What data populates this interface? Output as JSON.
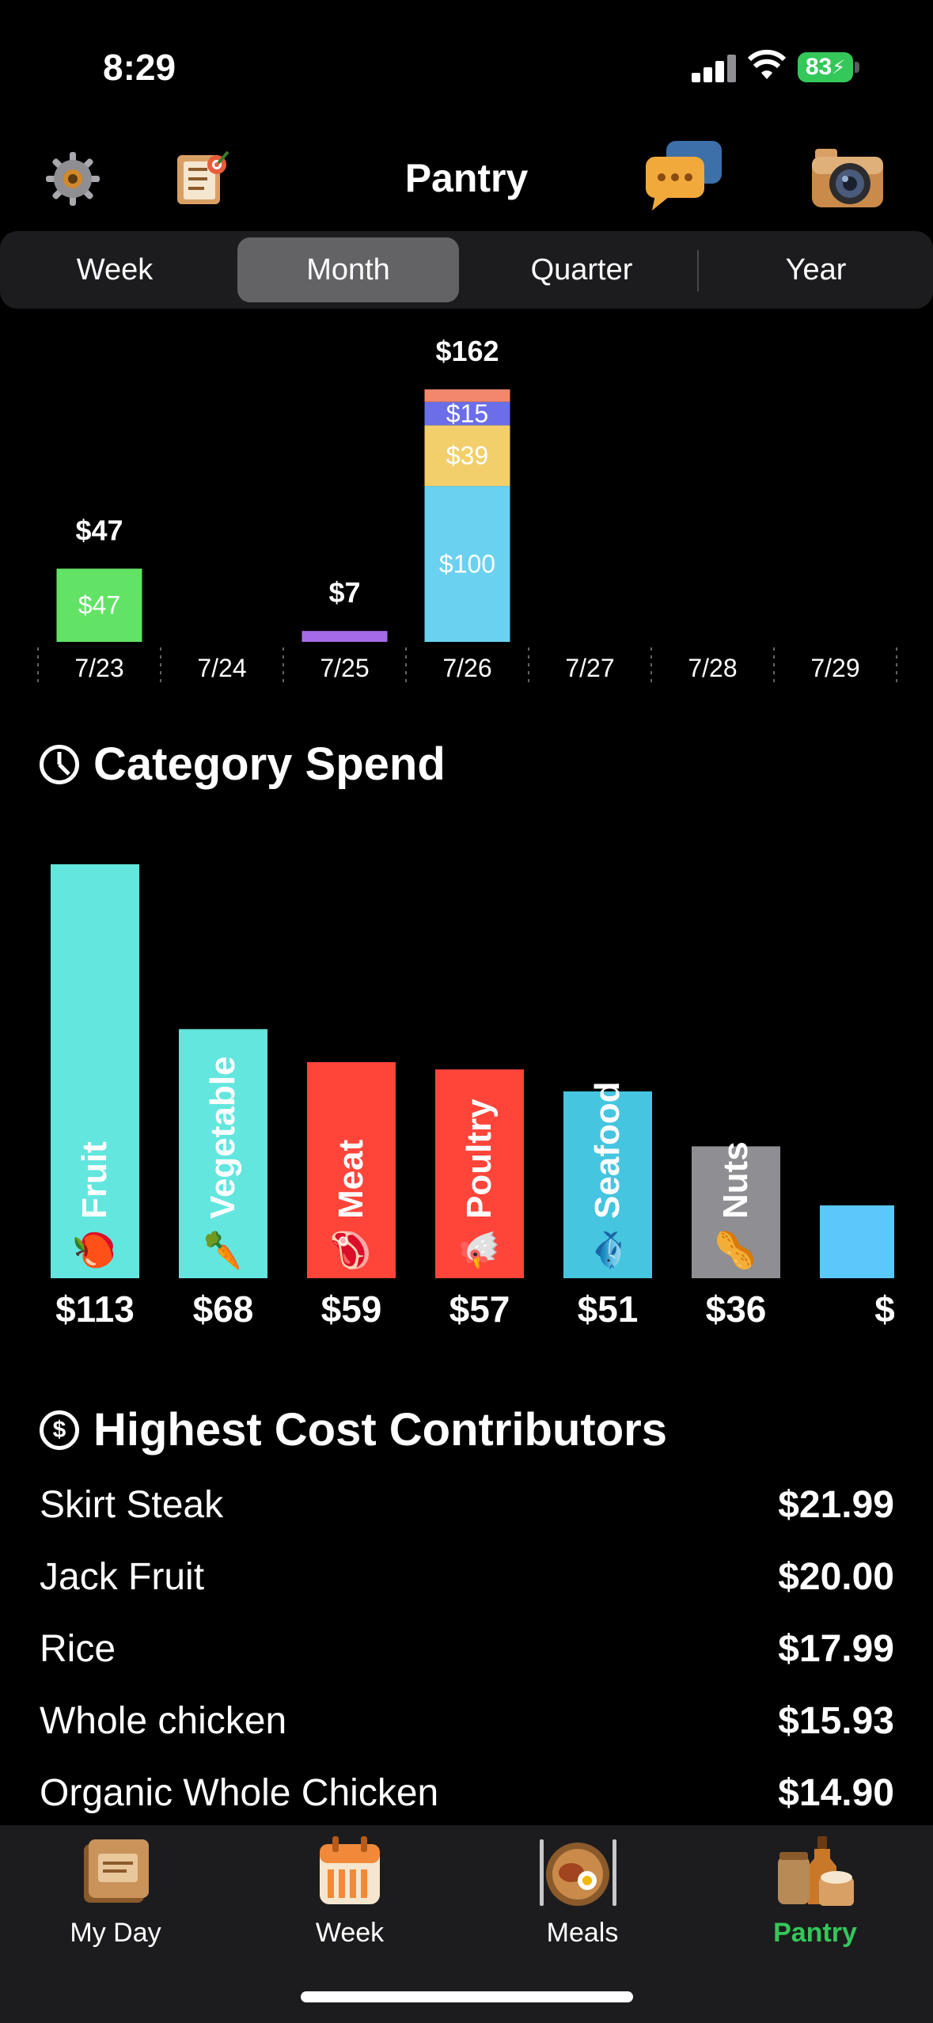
{
  "status_bar": {
    "time": "8:29",
    "battery": "83"
  },
  "header": {
    "title": "Pantry"
  },
  "segments": [
    "Week",
    "Month",
    "Quarter",
    "Year"
  ],
  "active_segment": "Month",
  "chart_data": [
    {
      "type": "bar",
      "stacked": true,
      "categories": [
        "7/23",
        "7/24",
        "7/25",
        "7/26",
        "7/27",
        "7/28",
        "7/29"
      ],
      "totals": [
        "$47",
        "",
        "$7",
        "$162",
        "",
        "",
        ""
      ],
      "series": [
        {
          "color": "#62e365",
          "values": [
            47,
            0,
            0,
            0,
            0,
            0,
            0
          ],
          "labels": [
            "$47",
            "",
            "",
            "",
            "",
            "",
            ""
          ]
        },
        {
          "color": "#a56ae8",
          "values": [
            0,
            0,
            7,
            0,
            0,
            0,
            0
          ],
          "labels": [
            "",
            "",
            "",
            "",
            "",
            "",
            ""
          ]
        },
        {
          "color": "#6bd1f0",
          "values": [
            0,
            0,
            0,
            100,
            0,
            0,
            0
          ],
          "labels": [
            "",
            "",
            "",
            "$100",
            "",
            "",
            ""
          ]
        },
        {
          "color": "#f2cf6b",
          "values": [
            0,
            0,
            0,
            39,
            0,
            0,
            0
          ],
          "labels": [
            "",
            "",
            "",
            "$39",
            "",
            "",
            ""
          ]
        },
        {
          "color": "#6b6ee8",
          "values": [
            0,
            0,
            0,
            15,
            0,
            0,
            0
          ],
          "labels": [
            "",
            "",
            "",
            "$15",
            "",
            "",
            ""
          ]
        },
        {
          "color": "#f2876b",
          "values": [
            0,
            0,
            0,
            8,
            0,
            0,
            0
          ],
          "labels": [
            "",
            "",
            "",
            "",
            "",
            "",
            ""
          ]
        }
      ]
    },
    {
      "type": "bar",
      "title": "Category Spend",
      "categories": [
        "Fruit",
        "Vegetable",
        "Meat",
        "Poultry",
        "Seafood",
        "Nuts",
        ""
      ],
      "emojis": [
        "🍎",
        "🥕",
        "🥩",
        "🐔",
        "🐟",
        "🥜",
        ""
      ],
      "values": [
        113,
        68,
        59,
        57,
        51,
        36,
        null
      ],
      "value_labels": [
        "$113",
        "$68",
        "$59",
        "$57",
        "$51",
        "$36",
        "$"
      ],
      "colors": [
        "#63e6de",
        "#63e6de",
        "#ff453a",
        "#ff453a",
        "#45c5e0",
        "#8e8e93",
        "#5ac8fa"
      ]
    }
  ],
  "category_section": {
    "title": "Category Spend"
  },
  "contributors_section": {
    "title": "Highest Cost Contributors",
    "items": [
      {
        "name": "Skirt Steak",
        "amount": "$21.99"
      },
      {
        "name": "Jack Fruit",
        "amount": "$20.00"
      },
      {
        "name": "Rice",
        "amount": "$17.99"
      },
      {
        "name": "Whole chicken",
        "amount": "$15.93"
      },
      {
        "name": "Organic Whole Chicken",
        "amount": "$14.90"
      }
    ]
  },
  "tabs": [
    {
      "label": "My Day",
      "icon": "diary-icon"
    },
    {
      "label": "Week",
      "icon": "calendar-icon"
    },
    {
      "label": "Meals",
      "icon": "meal-plate-icon"
    },
    {
      "label": "Pantry",
      "icon": "pantry-jars-icon"
    }
  ],
  "active_tab": "Pantry",
  "colors": {
    "accent": "#34c759"
  }
}
